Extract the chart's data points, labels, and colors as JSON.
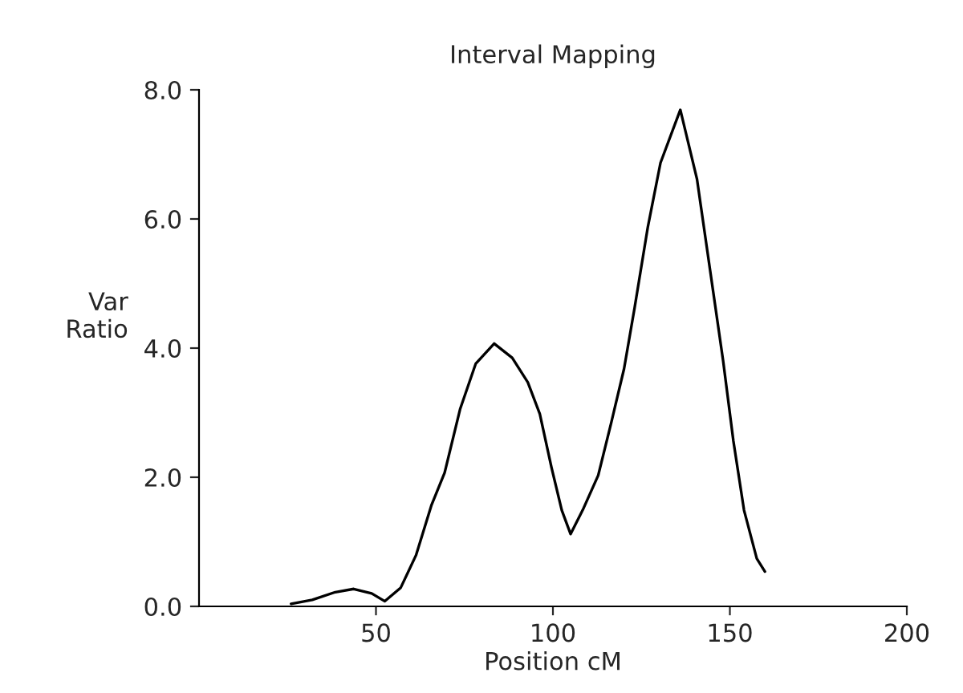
{
  "chart_data": {
    "type": "line",
    "title": "Interval Mapping",
    "xlabel": "Position cM",
    "ylabel": "Var\nRatio",
    "xlim": [
      0,
      200
    ],
    "xticks": [
      50,
      100,
      150,
      200
    ],
    "ylim": [
      0,
      8
    ],
    "yticks": [
      {
        "value": 0,
        "label": "0.0"
      },
      {
        "value": 2,
        "label": "2.0"
      },
      {
        "value": 4,
        "label": "4.0"
      },
      {
        "value": 6,
        "label": "6.0"
      },
      {
        "value": 8,
        "label": "8.0"
      }
    ],
    "grid": false,
    "marker": "none",
    "line_style": "solid",
    "series": [
      {
        "color": "#000000",
        "x": [
          26,
          32,
          38.5,
          43.7,
          48.8,
          52.5,
          57,
          61.3,
          65.7,
          69.4,
          73.8,
          78.2,
          83.4,
          88.5,
          92.9,
          96.3,
          99.6,
          102.5,
          105,
          108.4,
          112.8,
          116.5,
          120.1,
          123.1,
          126.8,
          130.4,
          136,
          140.7,
          144.4,
          148.1,
          151,
          154,
          157.6,
          159.9
        ],
        "values": [
          0.04,
          0.1,
          0.22,
          0.27,
          0.2,
          0.08,
          0.29,
          0.79,
          1.57,
          2.07,
          3.06,
          3.76,
          4.07,
          3.85,
          3.47,
          2.98,
          2.15,
          1.49,
          1.12,
          1.49,
          2.03,
          2.85,
          3.68,
          4.63,
          5.87,
          6.87,
          7.69,
          6.62,
          5.21,
          3.8,
          2.56,
          1.49,
          0.74,
          0.54
        ]
      }
    ]
  }
}
